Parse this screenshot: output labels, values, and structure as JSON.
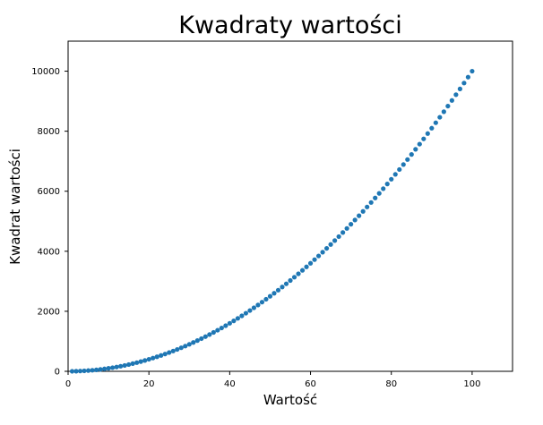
{
  "chart_data": {
    "type": "scatter",
    "title": "Kwadraty wartości",
    "xlabel": "Wartość",
    "ylabel": "Kwadrat wartości",
    "xlim": [
      0,
      110
    ],
    "ylim": [
      0,
      11000
    ],
    "x_ticks": [
      0,
      20,
      40,
      60,
      80,
      100
    ],
    "y_ticks": [
      0,
      2000,
      4000,
      6000,
      8000,
      10000
    ],
    "x_tick_labels": [
      "0",
      "20",
      "40",
      "60",
      "80",
      "100"
    ],
    "y_tick_labels": [
      "0",
      "2000",
      "4000",
      "6000",
      "8000",
      "10000"
    ],
    "x": [
      1,
      2,
      3,
      4,
      5,
      6,
      7,
      8,
      9,
      10,
      11,
      12,
      13,
      14,
      15,
      16,
      17,
      18,
      19,
      20,
      21,
      22,
      23,
      24,
      25,
      26,
      27,
      28,
      29,
      30,
      31,
      32,
      33,
      34,
      35,
      36,
      37,
      38,
      39,
      40,
      41,
      42,
      43,
      44,
      45,
      46,
      47,
      48,
      49,
      50,
      51,
      52,
      53,
      54,
      55,
      56,
      57,
      58,
      59,
      60,
      61,
      62,
      63,
      64,
      65,
      66,
      67,
      68,
      69,
      70,
      71,
      72,
      73,
      74,
      75,
      76,
      77,
      78,
      79,
      80,
      81,
      82,
      83,
      84,
      85,
      86,
      87,
      88,
      89,
      90,
      91,
      92,
      93,
      94,
      95,
      96,
      97,
      98,
      99,
      100
    ],
    "y": [
      1,
      4,
      9,
      16,
      25,
      36,
      49,
      64,
      81,
      100,
      121,
      144,
      169,
      196,
      225,
      256,
      289,
      324,
      361,
      400,
      441,
      484,
      529,
      576,
      625,
      676,
      729,
      784,
      841,
      900,
      961,
      1024,
      1089,
      1156,
      1225,
      1296,
      1369,
      1444,
      1521,
      1600,
      1681,
      1764,
      1849,
      1936,
      2025,
      2116,
      2209,
      2304,
      2401,
      2500,
      2601,
      2704,
      2809,
      2916,
      3025,
      3136,
      3249,
      3364,
      3481,
      3600,
      3721,
      3844,
      3969,
      4096,
      4225,
      4356,
      4489,
      4624,
      4761,
      4900,
      5041,
      5184,
      5329,
      5476,
      5625,
      5776,
      5929,
      6084,
      6241,
      6400,
      6561,
      6724,
      6889,
      7056,
      7225,
      7396,
      7569,
      7744,
      7921,
      8100,
      8281,
      8464,
      8649,
      8836,
      9025,
      9216,
      9409,
      9604,
      9801,
      10000
    ],
    "point_color": "#1f77b4",
    "grid": false,
    "legend": "none"
  }
}
